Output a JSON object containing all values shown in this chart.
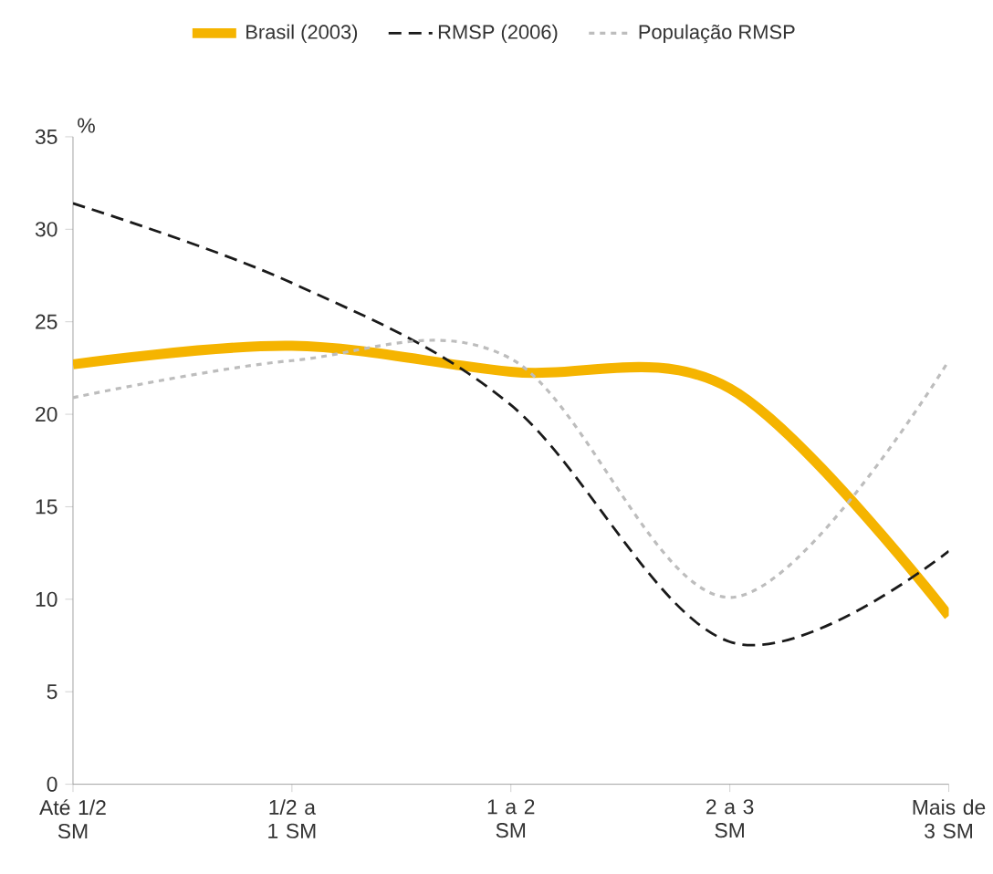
{
  "chart_data": {
    "type": "line",
    "ylabel": "%",
    "categories": [
      "Até 1/2 SM",
      "1/2 a 1 SM",
      "1 a 2 SM",
      "2 a 3 SM",
      "Mais de 3 SM"
    ],
    "series": [
      {
        "name": "Brasil (2003)",
        "color": "#f5b400",
        "line_style": "solid",
        "values": [
          22.7,
          23.7,
          22.3,
          21.4,
          9.1
        ]
      },
      {
        "name": "RMSP (2006)",
        "color": "#1a1a1a",
        "line_style": "dashed",
        "values": [
          31.4,
          27.1,
          20.5,
          7.7,
          12.6
        ]
      },
      {
        "name": "População RMSP",
        "color": "#bdbdbd",
        "line_style": "dotted",
        "values": [
          20.9,
          22.9,
          23.0,
          10.1,
          22.9
        ]
      }
    ],
    "ylim": [
      0,
      35
    ],
    "yticks": [
      0,
      5,
      10,
      15,
      20,
      25,
      30,
      35
    ],
    "grid": false,
    "legend": "top"
  }
}
